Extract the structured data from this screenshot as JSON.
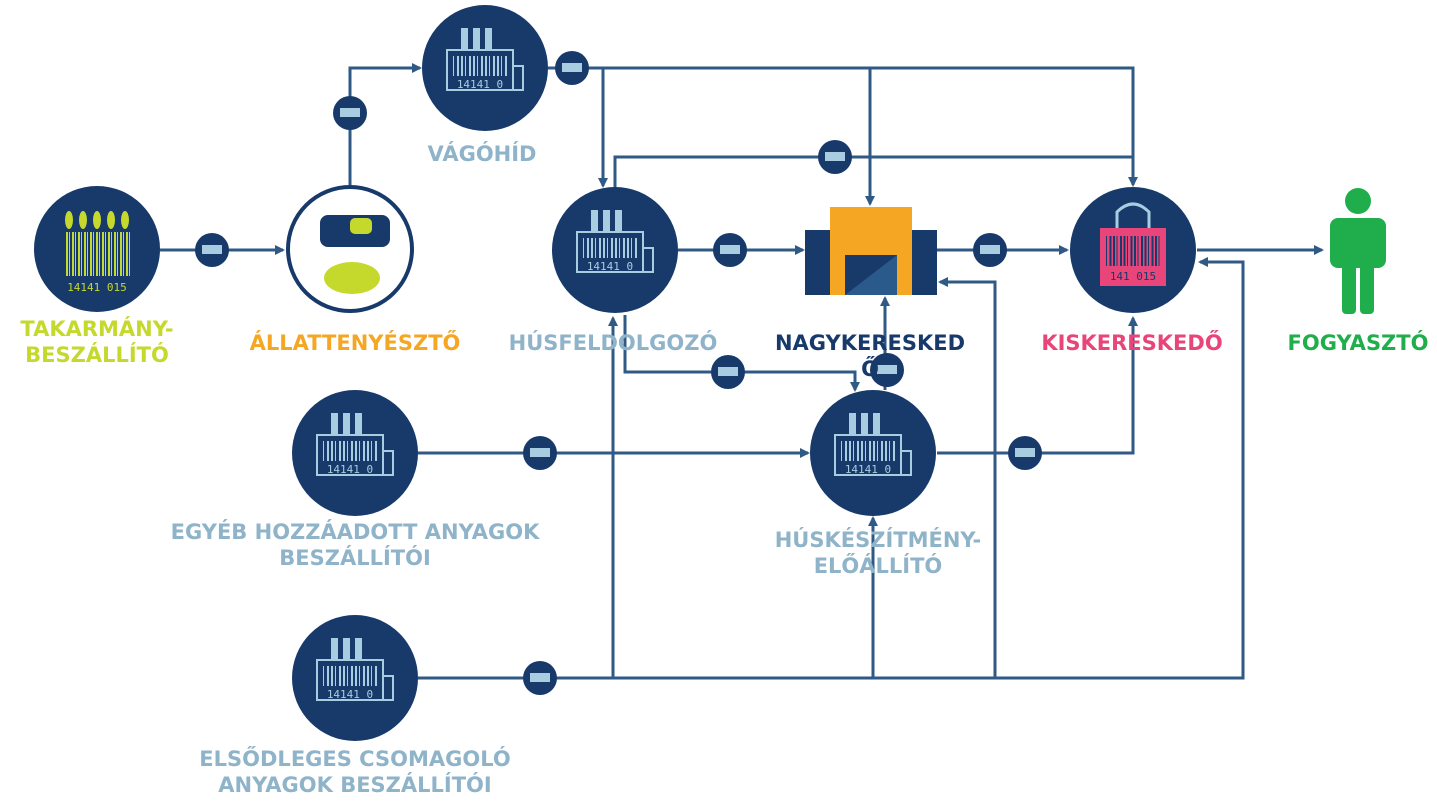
{
  "nodes": {
    "feed_supplier": {
      "label": [
        "TAKARMÁNY-",
        "BESZÁLLÍTÓ"
      ],
      "code": "14141 015"
    },
    "farmer": {
      "label": [
        "ÁLLATTENYÉSZTŐ"
      ]
    },
    "slaughterhouse": {
      "label": [
        "VÁGÓHÍD"
      ]
    },
    "meat_processor": {
      "label": [
        "HÚSFELDOLGOZÓ"
      ]
    },
    "wholesaler": {
      "label": [
        "NAGYKERESKED",
        "Ő"
      ]
    },
    "retailer": {
      "label": [
        "KISKERESKEDŐ"
      ],
      "code": "141 015"
    },
    "consumer": {
      "label": [
        "FOGYASZTÓ"
      ]
    },
    "other_suppliers": {
      "label": [
        "EGYÉB HOZZÁADOTT ANYAGOK",
        "BESZÁLLÍTÓI"
      ]
    },
    "meat_product_maker": {
      "label": [
        "HÚSKÉSZÍTMÉNY-",
        "ELŐÁLLÍTÓ"
      ]
    },
    "packaging_suppliers": {
      "label": [
        "ELSŐDLEGES CSOMAGOLÓ",
        "ANYAGOK BESZÁLLÍTÓI"
      ]
    }
  },
  "factory_code": "14141 0"
}
